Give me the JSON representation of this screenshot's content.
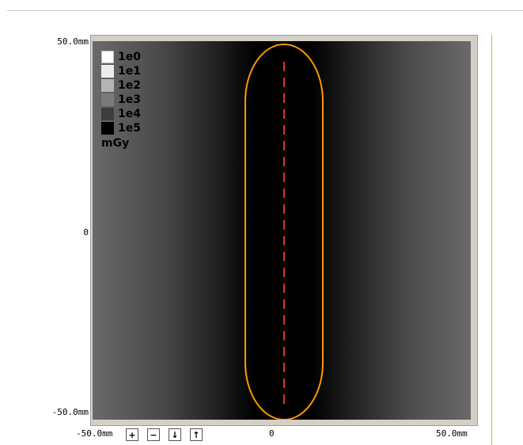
{
  "axes": {
    "y_top": "50.0mm",
    "y_mid": "0",
    "y_bottom": "-50.0mm",
    "x_left": "-50.0mm",
    "x_mid": "0",
    "x_right": "50.0mm"
  },
  "legend": {
    "items": [
      {
        "label": "1e0",
        "color": "#ffffff"
      },
      {
        "label": "1e1",
        "color": "#ececec"
      },
      {
        "label": "1e2",
        "color": "#b4b4b4"
      },
      {
        "label": "1e3",
        "color": "#7a7a7a"
      },
      {
        "label": "1e4",
        "color": "#3c3c3c"
      },
      {
        "label": "1e5",
        "color": "#000000"
      }
    ],
    "unit": "mGy"
  },
  "controls": {
    "zoom_in": "+",
    "zoom_out": "−",
    "down": "↓",
    "up": "↑"
  },
  "colors": {
    "contour": "#ff9800",
    "centerline": "#e03030"
  },
  "icons": {
    "zoom_in": "plus-icon",
    "zoom_out": "minus-icon",
    "down": "arrow-down-icon",
    "up": "arrow-up-icon"
  }
}
